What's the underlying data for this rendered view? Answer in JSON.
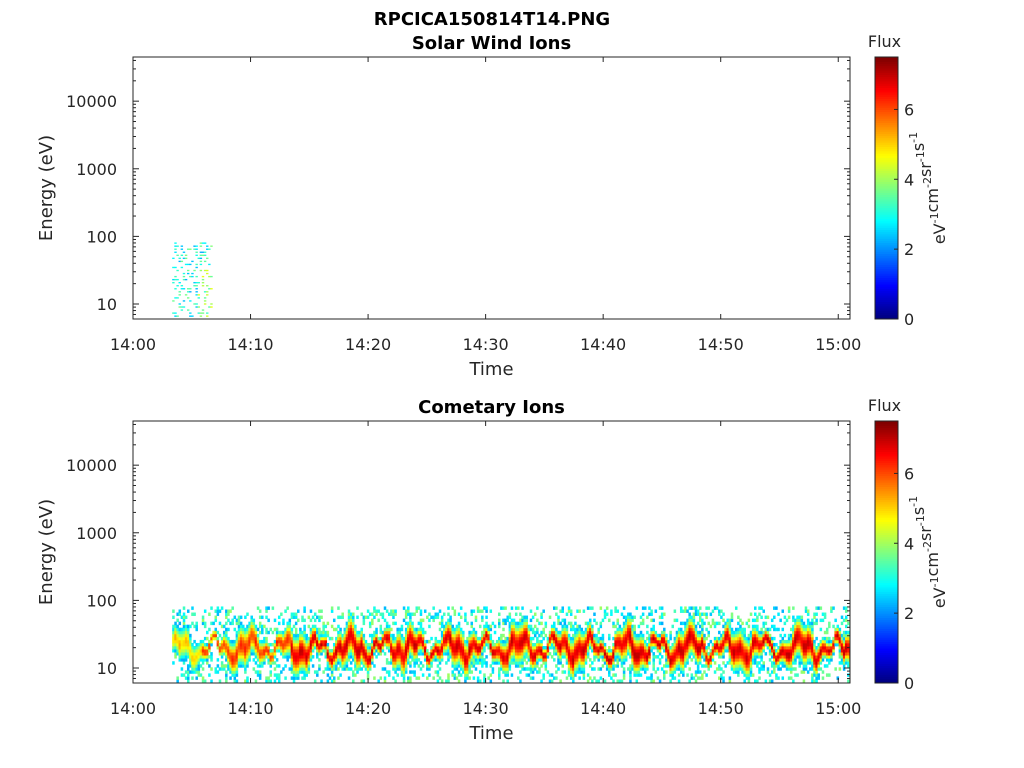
{
  "figure": {
    "title": "RPCICA150814T14.PNG"
  },
  "chart_data": [
    {
      "type": "heatmap",
      "title": "Solar Wind Ions",
      "xlabel": "Time",
      "ylabel": "Energy (eV)",
      "y_scale": "log",
      "ylim": [
        6,
        45000
      ],
      "x_range": [
        "14:00",
        "15:01"
      ],
      "x_ticks": [
        "14:00",
        "14:10",
        "14:20",
        "14:30",
        "14:40",
        "14:50",
        "15:00"
      ],
      "y_ticks": [
        "10",
        "100",
        "1000",
        "10000"
      ],
      "colorbar": {
        "label": "Flux",
        "unit": "eV-1cm-2sr-1s-1",
        "range": [
          0,
          7.5
        ],
        "ticks": [
          "0",
          "2",
          "4",
          "6"
        ],
        "colormap": "jet"
      },
      "data_description": "Sparse low-flux signal only between ~14:03 and ~14:06, energies ~6-80 eV, flux ~2-4",
      "cells": [
        {
          "t_start": "14:03:20",
          "t_end": "14:06:40",
          "e_min": 6,
          "e_max": 80,
          "flux": 3.0
        }
      ]
    },
    {
      "type": "heatmap",
      "title": "Cometary Ions",
      "xlabel": "Time",
      "ylabel": "Energy (eV)",
      "y_scale": "log",
      "ylim": [
        6,
        45000
      ],
      "x_range": [
        "14:00",
        "15:01"
      ],
      "x_ticks": [
        "14:00",
        "14:10",
        "14:20",
        "14:30",
        "14:40",
        "14:50",
        "15:00"
      ],
      "y_ticks": [
        "10",
        "100",
        "1000",
        "10000"
      ],
      "colorbar": {
        "label": "Flux",
        "unit": "eV-1cm-2sr-1s-1",
        "range": [
          0,
          7.5
        ],
        "ticks": [
          "0",
          "2",
          "4",
          "6"
        ],
        "colormap": "jet"
      },
      "data_description": "Continuous cometary ion band from ~14:03 to 15:01, energies ~6-80 eV, peak flux ~6-7 centered ~15-30 eV",
      "band": {
        "t_start": "14:03:20",
        "t_end": "15:01:00",
        "e_min": 6,
        "e_max": 80,
        "peak_flux": 6.8,
        "peak_energy_ev": 20
      }
    }
  ]
}
